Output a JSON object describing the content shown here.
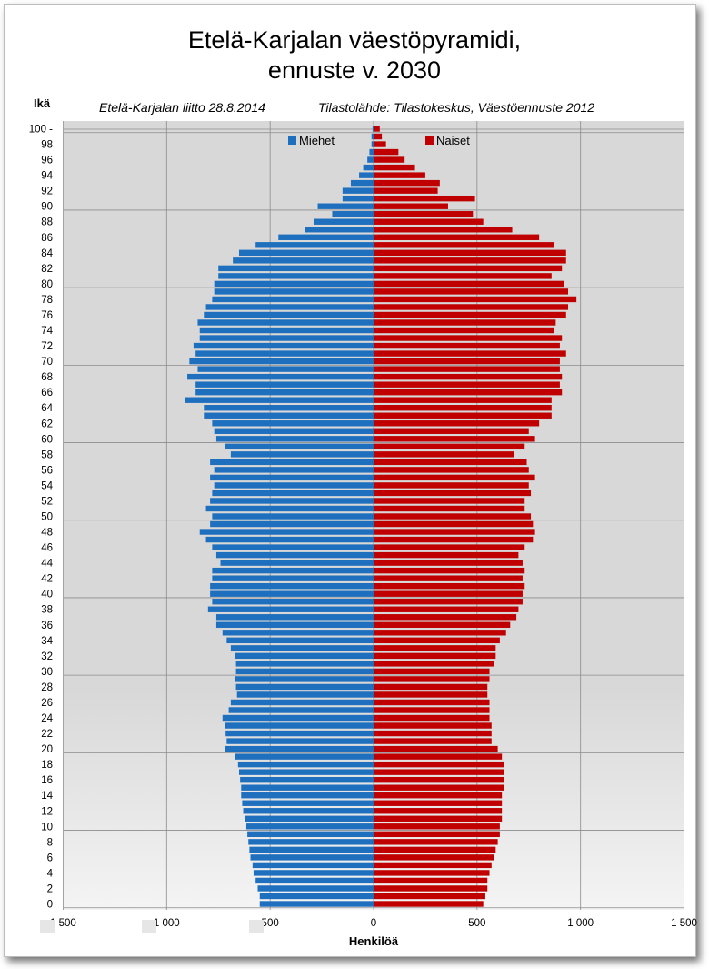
{
  "title_line1": "Etelä-Karjalan väestöpyramidi,",
  "title_line2": "ennuste v. 2030",
  "subtitle_left": "Etelä-Karjalan liitto 28.8.2014",
  "subtitle_right": "Tilastolähde: Tilastokeskus, Väestöennuste 2012",
  "colors": {
    "men": "#1f6fbf",
    "women": "#c00000",
    "plot_top": "#d8d8d8",
    "plot_bottom": "#f4f4f4",
    "grid": "#8c8c8c"
  },
  "chart_data": {
    "type": "bar",
    "orientation": "horizontal",
    "title": "Etelä-Karjalan väestöpyramidi, ennuste v. 2030",
    "ylabel": "Ikä",
    "xlabel": "Henkilöä",
    "xlim": [
      -1500,
      1500
    ],
    "x_ticks": [
      "1 500",
      "1 000",
      "500",
      "0",
      "500",
      "1 000",
      "1 500"
    ],
    "y_ticks": [
      "0",
      "2",
      "4",
      "6",
      "8",
      "10",
      "12",
      "14",
      "16",
      "18",
      "20",
      "22",
      "24",
      "26",
      "28",
      "30",
      "32",
      "34",
      "36",
      "38",
      "40",
      "42",
      "44",
      "46",
      "48",
      "50",
      "52",
      "54",
      "56",
      "58",
      "60",
      "62",
      "64",
      "66",
      "68",
      "70",
      "72",
      "74",
      "76",
      "78",
      "80",
      "82",
      "84",
      "86",
      "88",
      "90",
      "92",
      "94",
      "96",
      "98",
      "100 -"
    ],
    "legend": [
      "Miehet",
      "Naiset"
    ],
    "legend_position": "top",
    "ages": [
      0,
      1,
      2,
      3,
      4,
      5,
      6,
      7,
      8,
      9,
      10,
      11,
      12,
      13,
      14,
      15,
      16,
      17,
      18,
      19,
      20,
      21,
      22,
      23,
      24,
      25,
      26,
      27,
      28,
      29,
      30,
      31,
      32,
      33,
      34,
      35,
      36,
      37,
      38,
      39,
      40,
      41,
      42,
      43,
      44,
      45,
      46,
      47,
      48,
      49,
      50,
      51,
      52,
      53,
      54,
      55,
      56,
      57,
      58,
      59,
      60,
      61,
      62,
      63,
      64,
      65,
      66,
      67,
      68,
      69,
      70,
      71,
      72,
      73,
      74,
      75,
      76,
      77,
      78,
      79,
      80,
      81,
      82,
      83,
      84,
      85,
      86,
      87,
      88,
      89,
      90,
      91,
      92,
      93,
      94,
      95,
      96,
      97,
      98,
      99,
      100
    ],
    "series": [
      {
        "name": "Miehet",
        "values": [
          550,
          550,
          560,
          570,
          580,
          585,
          595,
          600,
          605,
          610,
          615,
          620,
          630,
          635,
          640,
          640,
          645,
          650,
          655,
          670,
          720,
          710,
          715,
          720,
          730,
          700,
          690,
          660,
          665,
          670,
          665,
          665,
          670,
          690,
          710,
          730,
          760,
          760,
          800,
          780,
          790,
          790,
          780,
          780,
          740,
          760,
          780,
          810,
          840,
          790,
          780,
          810,
          790,
          780,
          770,
          790,
          770,
          790,
          690,
          720,
          760,
          770,
          780,
          820,
          820,
          910,
          860,
          860,
          900,
          850,
          890,
          860,
          870,
          840,
          840,
          850,
          820,
          810,
          780,
          770,
          770,
          750,
          750,
          680,
          650,
          570,
          460,
          330,
          290,
          200,
          270,
          150,
          150,
          110,
          70,
          50,
          30,
          20,
          10,
          10,
          5
        ]
      },
      {
        "name": "Naiset",
        "values": [
          530,
          540,
          550,
          550,
          560,
          570,
          580,
          590,
          600,
          610,
          610,
          620,
          620,
          620,
          620,
          630,
          630,
          630,
          630,
          620,
          600,
          570,
          570,
          570,
          560,
          560,
          560,
          550,
          550,
          560,
          560,
          580,
          590,
          590,
          610,
          640,
          660,
          690,
          700,
          720,
          720,
          730,
          720,
          730,
          720,
          700,
          730,
          770,
          780,
          770,
          760,
          730,
          730,
          760,
          750,
          780,
          750,
          740,
          680,
          730,
          780,
          750,
          800,
          860,
          860,
          860,
          910,
          900,
          910,
          900,
          900,
          930,
          900,
          910,
          870,
          880,
          930,
          940,
          980,
          940,
          920,
          860,
          910,
          930,
          930,
          870,
          800,
          670,
          530,
          480,
          360,
          490,
          310,
          320,
          250,
          200,
          150,
          120,
          60,
          40,
          30
        ]
      }
    ]
  }
}
